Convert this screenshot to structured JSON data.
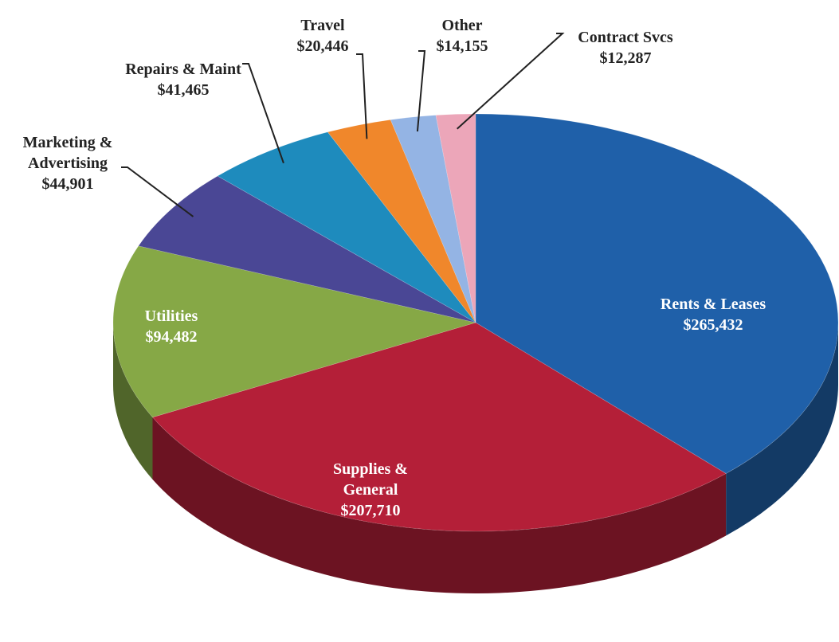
{
  "chart_data": {
    "type": "pie",
    "categories": [
      "Rents & Leases",
      "Supplies & General",
      "Utilities",
      "Marketing & Advertising",
      "Repairs & Maint",
      "Travel",
      "Other",
      "Contract Svcs"
    ],
    "values": [
      265432,
      207710,
      94482,
      44901,
      41465,
      20446,
      14155,
      12287
    ],
    "value_labels": [
      "$265,432",
      "$207,710",
      "$94,482",
      "$44,901",
      "$41,465",
      "$20,446",
      "$14,155",
      "$12,287"
    ],
    "colors": [
      "#1f60a9",
      "#b41f38",
      "#86a846",
      "#4a4795",
      "#1e8bbd",
      "#f0872b",
      "#94b4e4",
      "#eca6b9"
    ]
  }
}
